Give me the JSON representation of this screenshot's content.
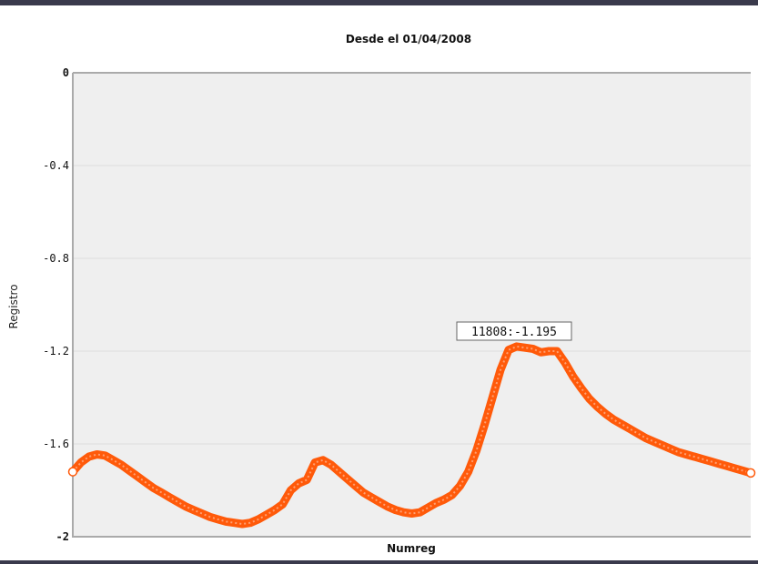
{
  "chart_data": {
    "type": "line",
    "title": "Desde el 01/04/2008",
    "xlabel": "Numreg",
    "ylabel": "Registro",
    "ylim": [
      -2,
      0
    ],
    "yticks": [
      "0",
      "-0.4",
      "-0.8",
      "-1.2",
      "-1.6",
      "-2"
    ],
    "grid": true,
    "tooltip": "11808:-1.195",
    "colors": {
      "series": "#ff5a0a",
      "plot_bg": "#efefef",
      "grid": "#dddddd"
    },
    "series": [
      {
        "points": [
          [
            0,
            -1.72
          ],
          [
            1,
            -1.68
          ],
          [
            2,
            -1.655
          ],
          [
            3,
            -1.645
          ],
          [
            4,
            -1.65
          ],
          [
            5,
            -1.67
          ],
          [
            6,
            -1.69
          ],
          [
            7,
            -1.715
          ],
          [
            8,
            -1.74
          ],
          [
            9,
            -1.765
          ],
          [
            10,
            -1.79
          ],
          [
            11,
            -1.81
          ],
          [
            12,
            -1.83
          ],
          [
            13,
            -1.85
          ],
          [
            14,
            -1.87
          ],
          [
            15,
            -1.885
          ],
          [
            16,
            -1.9
          ],
          [
            17,
            -1.915
          ],
          [
            18,
            -1.925
          ],
          [
            19,
            -1.935
          ],
          [
            20,
            -1.94
          ],
          [
            21,
            -1.945
          ],
          [
            22,
            -1.94
          ],
          [
            23,
            -1.925
          ],
          [
            24,
            -1.905
          ],
          [
            25,
            -1.885
          ],
          [
            26,
            -1.86
          ],
          [
            27,
            -1.8
          ],
          [
            28,
            -1.77
          ],
          [
            29,
            -1.755
          ],
          [
            30,
            -1.68
          ],
          [
            31,
            -1.67
          ],
          [
            32,
            -1.69
          ],
          [
            33,
            -1.72
          ],
          [
            34,
            -1.75
          ],
          [
            35,
            -1.78
          ],
          [
            36,
            -1.81
          ],
          [
            37,
            -1.83
          ],
          [
            38,
            -1.85
          ],
          [
            39,
            -1.87
          ],
          [
            40,
            -1.885
          ],
          [
            41,
            -1.895
          ],
          [
            42,
            -1.9
          ],
          [
            43,
            -1.895
          ],
          [
            44,
            -1.875
          ],
          [
            45,
            -1.855
          ],
          [
            46,
            -1.84
          ],
          [
            47,
            -1.82
          ],
          [
            48,
            -1.78
          ],
          [
            49,
            -1.72
          ],
          [
            50,
            -1.63
          ],
          [
            51,
            -1.52
          ],
          [
            52,
            -1.4
          ],
          [
            53,
            -1.28
          ],
          [
            54,
            -1.195
          ],
          [
            55,
            -1.18
          ],
          [
            56,
            -1.185
          ],
          [
            57,
            -1.19
          ],
          [
            58,
            -1.205
          ],
          [
            59,
            -1.2
          ],
          [
            60,
            -1.2
          ],
          [
            61,
            -1.25
          ],
          [
            62,
            -1.31
          ],
          [
            63,
            -1.36
          ],
          [
            64,
            -1.405
          ],
          [
            65,
            -1.44
          ],
          [
            66,
            -1.47
          ],
          [
            67,
            -1.495
          ],
          [
            68,
            -1.515
          ],
          [
            69,
            -1.535
          ],
          [
            70,
            -1.555
          ],
          [
            71,
            -1.575
          ],
          [
            72,
            -1.59
          ],
          [
            73,
            -1.605
          ],
          [
            74,
            -1.62
          ],
          [
            75,
            -1.635
          ],
          [
            76,
            -1.645
          ],
          [
            77,
            -1.655
          ],
          [
            78,
            -1.665
          ],
          [
            79,
            -1.675
          ],
          [
            80,
            -1.685
          ],
          [
            81,
            -1.695
          ],
          [
            82,
            -1.705
          ],
          [
            83,
            -1.715
          ],
          [
            84,
            -1.725
          ]
        ]
      }
    ]
  }
}
